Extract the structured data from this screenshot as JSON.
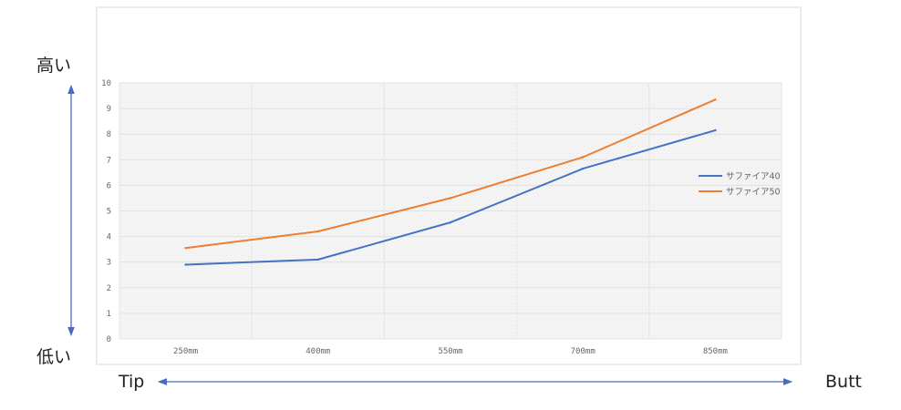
{
  "annotations": {
    "high": "高い",
    "low": "低い",
    "tip": "Tip",
    "butt": "Butt"
  },
  "chart_data": {
    "type": "line",
    "categories": [
      "250mm",
      "400mm",
      "550mm",
      "700mm",
      "850mm"
    ],
    "series": [
      {
        "name": "サファイア40",
        "color": "#4472c4",
        "values": [
          2.9,
          3.1,
          4.55,
          6.65,
          8.15
        ]
      },
      {
        "name": "サファイア50",
        "color": "#ed7d31",
        "values": [
          3.55,
          4.2,
          5.5,
          7.1,
          9.35
        ]
      }
    ],
    "y_ticks": [
      "0",
      "1",
      "2",
      "3",
      "4",
      "5",
      "6",
      "7",
      "8",
      "9",
      "10"
    ],
    "ylim": [
      0,
      10
    ],
    "grid": true,
    "legend_position": "right"
  }
}
